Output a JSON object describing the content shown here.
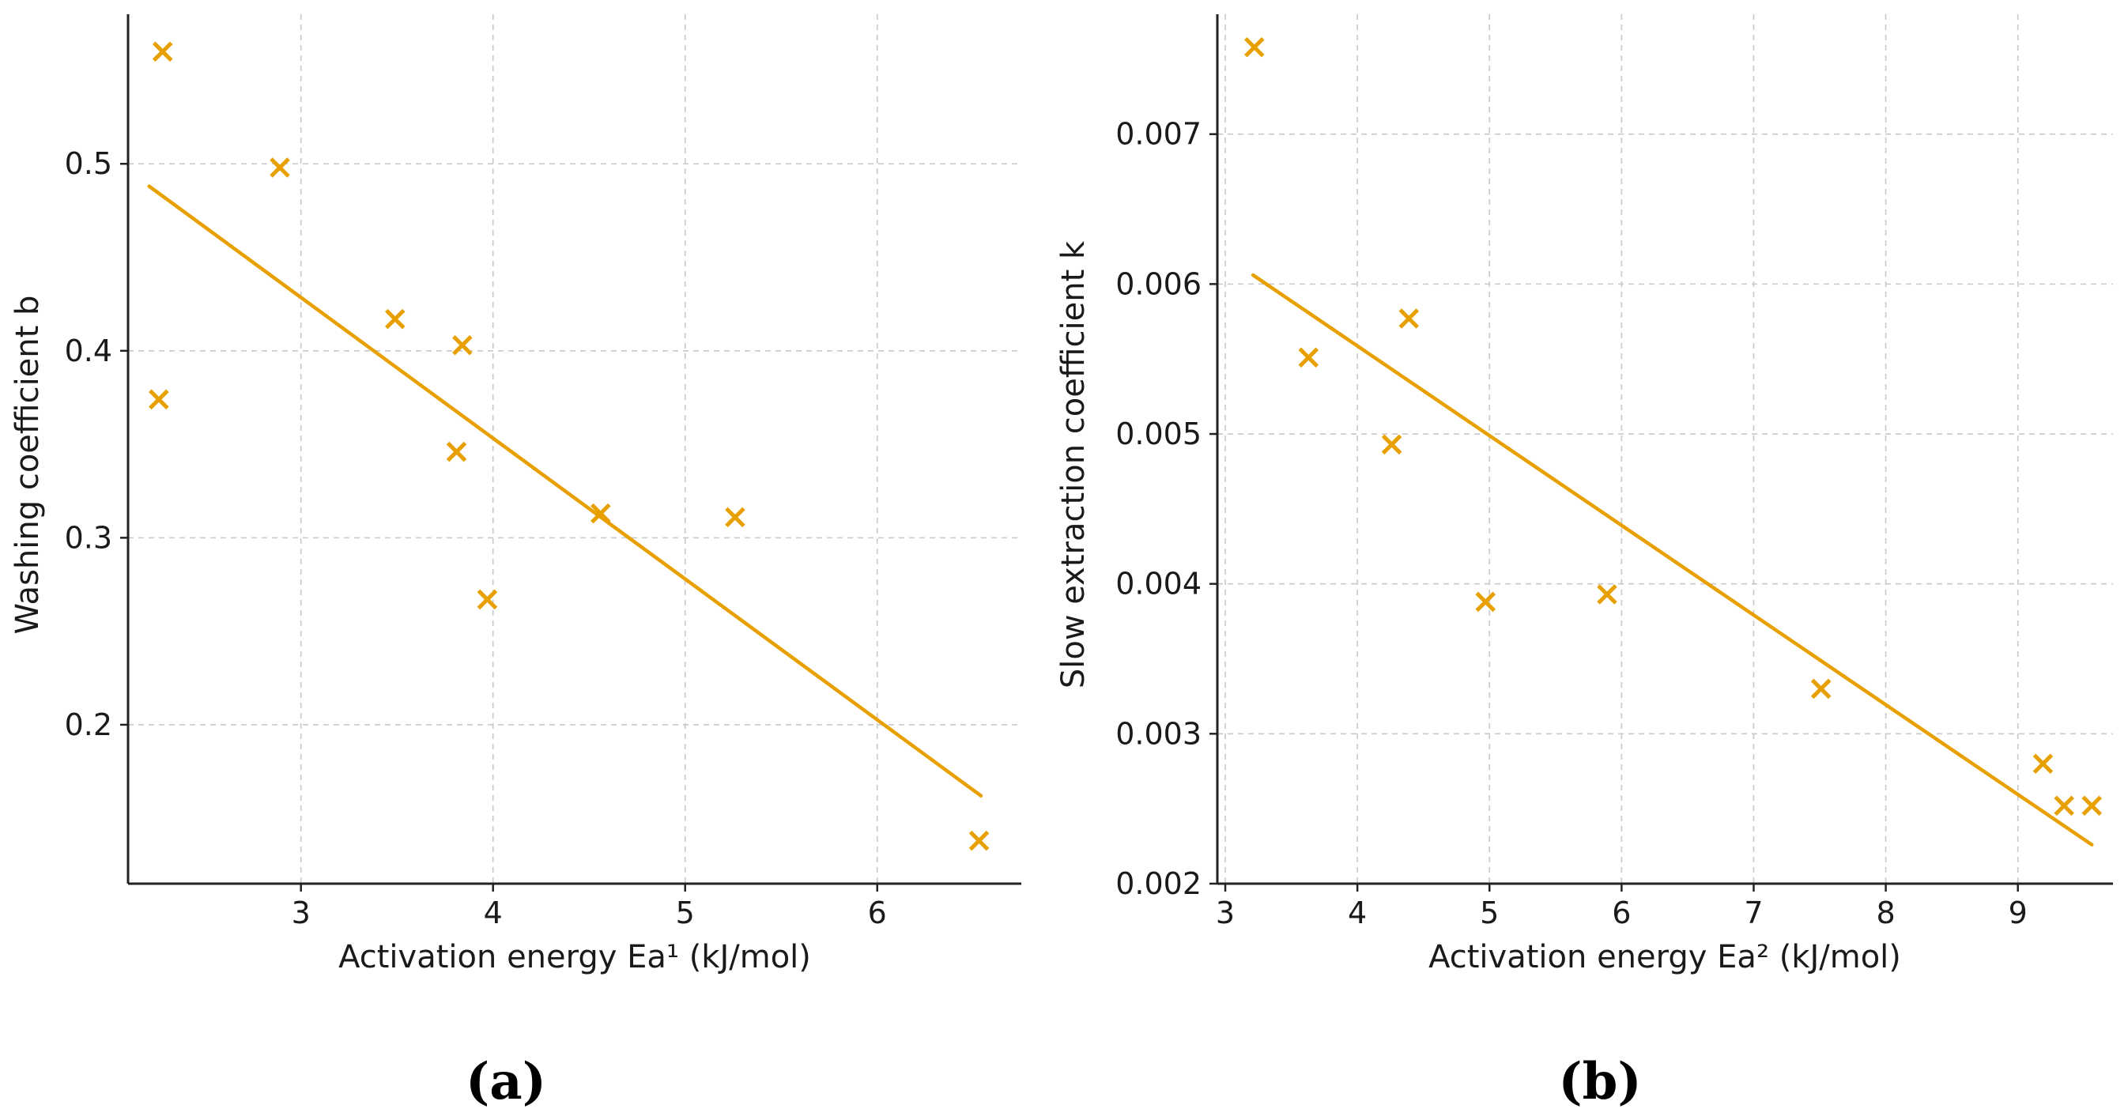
{
  "colors": {
    "accent": "#E8A000",
    "axis": "#222222",
    "grid": "#C8C8C8"
  },
  "chart_data": [
    {
      "id": "a",
      "type": "scatter",
      "panel_label": "(a)",
      "title": "",
      "xlabel": "Activation energy Ea¹ (kJ/mol)",
      "ylabel": "Washing coefficient b",
      "xlim": [
        2.1,
        6.75
      ],
      "ylim": [
        0.115,
        0.58
      ],
      "xticks": [
        3,
        4,
        5,
        6
      ],
      "yticks": [
        0.2,
        0.3,
        0.4,
        0.5
      ],
      "xtick_labels": [
        "3",
        "4",
        "5",
        "6"
      ],
      "ytick_labels": [
        "0.2",
        "0.3",
        "0.4",
        "0.5"
      ],
      "grid": true,
      "marker": "x",
      "points": [
        {
          "x": 2.28,
          "y": 0.56
        },
        {
          "x": 2.26,
          "y": 0.374
        },
        {
          "x": 2.89,
          "y": 0.498
        },
        {
          "x": 3.49,
          "y": 0.417
        },
        {
          "x": 3.84,
          "y": 0.403
        },
        {
          "x": 3.81,
          "y": 0.346
        },
        {
          "x": 3.97,
          "y": 0.267
        },
        {
          "x": 4.56,
          "y": 0.313
        },
        {
          "x": 5.26,
          "y": 0.311
        },
        {
          "x": 6.53,
          "y": 0.138
        }
      ],
      "fit_line": [
        {
          "x": 2.21,
          "y": 0.488
        },
        {
          "x": 6.54,
          "y": 0.162
        }
      ]
    },
    {
      "id": "b",
      "type": "scatter",
      "panel_label": "(b)",
      "title": "",
      "xlabel": "Activation energy Ea² (kJ/mol)",
      "ylabel": "Slow extraction coefficient k",
      "xlim": [
        2.94,
        9.72
      ],
      "ylim": [
        0.002,
        0.0078
      ],
      "xticks": [
        3,
        4,
        5,
        6,
        7,
        8,
        9
      ],
      "yticks": [
        0.002,
        0.003,
        0.004,
        0.005,
        0.006,
        0.007
      ],
      "xtick_labels": [
        "3",
        "4",
        "5",
        "6",
        "7",
        "8",
        "9"
      ],
      "ytick_labels": [
        "0.002",
        "0.003",
        "0.004",
        "0.005",
        "0.006",
        "0.007"
      ],
      "grid": true,
      "marker": "x",
      "points": [
        {
          "x": 3.22,
          "y": 0.00758
        },
        {
          "x": 3.63,
          "y": 0.00551
        },
        {
          "x": 4.39,
          "y": 0.00577
        },
        {
          "x": 4.26,
          "y": 0.00493
        },
        {
          "x": 4.97,
          "y": 0.00388
        },
        {
          "x": 5.89,
          "y": 0.00393
        },
        {
          "x": 7.51,
          "y": 0.0033
        },
        {
          "x": 9.19,
          "y": 0.0028
        },
        {
          "x": 9.35,
          "y": 0.00252
        },
        {
          "x": 9.56,
          "y": 0.00252
        }
      ],
      "fit_line": [
        {
          "x": 3.21,
          "y": 0.00606
        },
        {
          "x": 9.56,
          "y": 0.00226
        }
      ]
    }
  ]
}
